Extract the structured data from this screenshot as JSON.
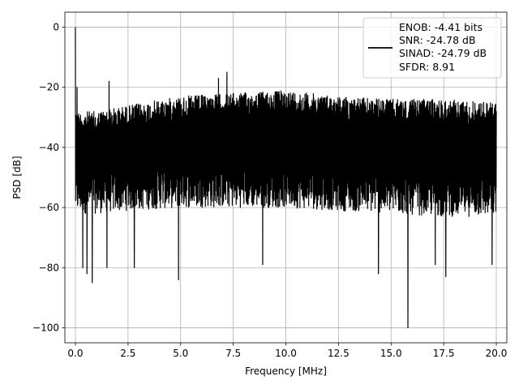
{
  "chart_data": {
    "type": "line",
    "xlabel": "Frequency [MHz]",
    "ylabel": "PSD [dB]",
    "xlim": [
      -0.5,
      20.5
    ],
    "ylim": [
      -105,
      5
    ],
    "xticks": [
      0.0,
      2.5,
      5.0,
      7.5,
      10.0,
      12.5,
      15.0,
      17.5,
      20.0
    ],
    "xtick_labels": [
      "0.0",
      "2.5",
      "5.0",
      "7.5",
      "10.0",
      "12.5",
      "15.0",
      "17.5",
      "20.0"
    ],
    "yticks": [
      0,
      -20,
      -40,
      -60,
      -80,
      -100
    ],
    "ytick_labels": [
      "0",
      "−20",
      "−40",
      "−60",
      "−80",
      "−100"
    ],
    "grid": true,
    "legend_position": "top-right",
    "series": [
      {
        "color": "#000000",
        "legend_lines": [
          "ENOB: -4.41 bits",
          "SNR: -24.78 dB",
          "SINAD: -24.79 dB",
          "SFDR: 8.91"
        ],
        "envelope_upper": [
          [
            0.0,
            -28
          ],
          [
            1.0,
            -28
          ],
          [
            2.5,
            -26
          ],
          [
            5.0,
            -23
          ],
          [
            7.5,
            -22
          ],
          [
            10.0,
            -21
          ],
          [
            12.5,
            -23
          ],
          [
            15.0,
            -24
          ],
          [
            17.5,
            -24
          ],
          [
            20.0,
            -25
          ]
        ],
        "envelope_lower": [
          [
            0.0,
            -62
          ],
          [
            1.0,
            -62
          ],
          [
            2.5,
            -61
          ],
          [
            5.0,
            -60
          ],
          [
            7.5,
            -60
          ],
          [
            10.0,
            -60
          ],
          [
            12.5,
            -61
          ],
          [
            15.0,
            -62
          ],
          [
            17.5,
            -63
          ],
          [
            20.0,
            -63
          ]
        ],
        "peaks": [
          [
            0.0,
            0
          ],
          [
            0.08,
            -20
          ],
          [
            1.6,
            -18
          ],
          [
            6.8,
            -17
          ],
          [
            7.2,
            -15
          ]
        ],
        "dips": [
          [
            0.35,
            -80
          ],
          [
            0.55,
            -82
          ],
          [
            0.8,
            -85
          ],
          [
            1.5,
            -80
          ],
          [
            2.8,
            -80
          ],
          [
            4.9,
            -84
          ],
          [
            8.9,
            -79
          ],
          [
            14.4,
            -82
          ],
          [
            15.8,
            -100
          ],
          [
            17.1,
            -79
          ],
          [
            17.6,
            -83
          ],
          [
            19.8,
            -79
          ]
        ]
      }
    ]
  }
}
